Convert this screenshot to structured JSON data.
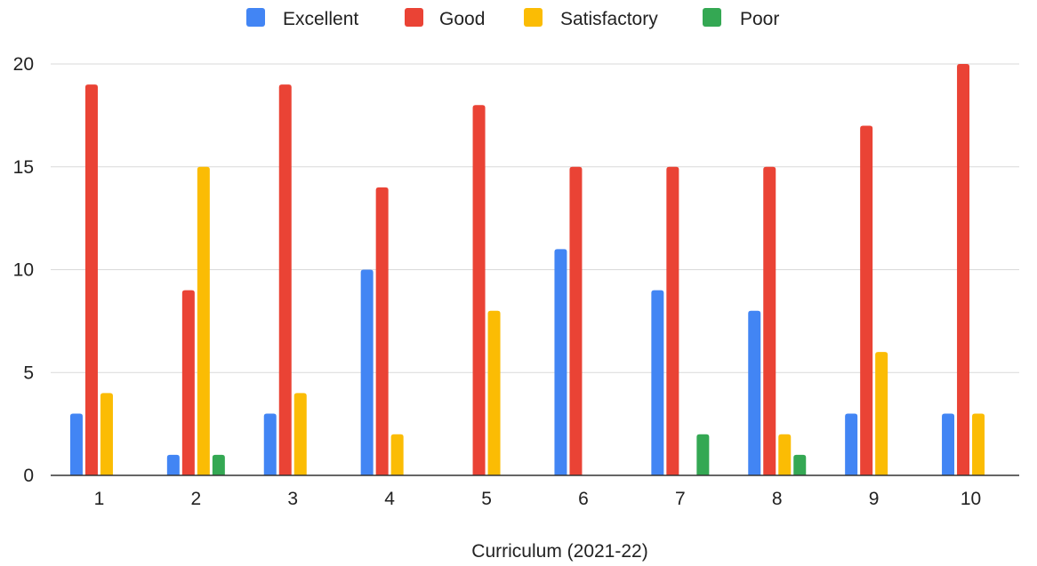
{
  "chart_data": {
    "type": "bar",
    "title": "",
    "xlabel": "Curriculum (2021-22)",
    "ylabel": "",
    "categories": [
      "1",
      "2",
      "3",
      "4",
      "5",
      "6",
      "7",
      "8",
      "9",
      "10"
    ],
    "series": [
      {
        "name": "Excellent",
        "color": "#4285f4",
        "values": [
          3,
          1,
          3,
          10,
          0,
          11,
          9,
          8,
          3,
          3
        ]
      },
      {
        "name": "Good",
        "color": "#ea4335",
        "values": [
          19,
          9,
          19,
          14,
          18,
          15,
          15,
          15,
          17,
          20
        ]
      },
      {
        "name": "Satisfactory",
        "color": "#fbbc04",
        "values": [
          4,
          15,
          4,
          2,
          8,
          0,
          0,
          2,
          6,
          3
        ]
      },
      {
        "name": "Poor",
        "color": "#34a853",
        "values": [
          0,
          1,
          0,
          0,
          0,
          0,
          2,
          1,
          0,
          0
        ]
      }
    ],
    "ylim": [
      0,
      20
    ],
    "yticks": [
      0,
      5,
      10,
      15,
      20
    ],
    "grid": true,
    "legend_position": "top-center"
  }
}
